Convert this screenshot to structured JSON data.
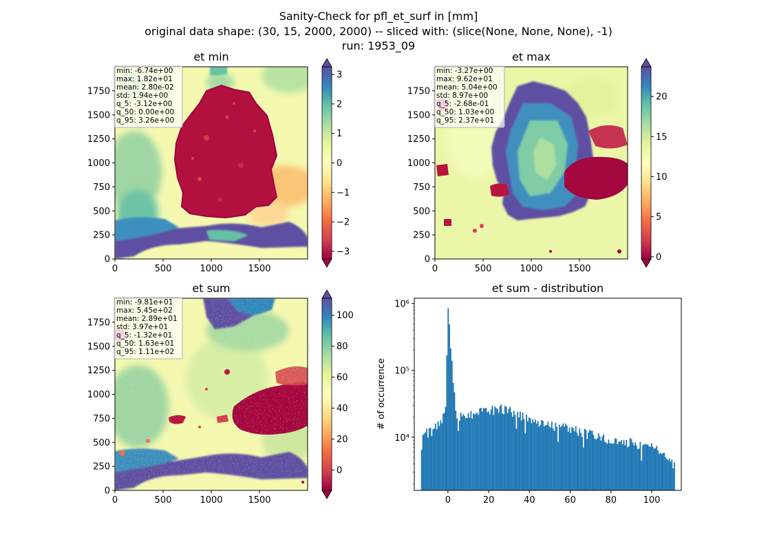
{
  "figure": {
    "title_lines": [
      "Sanity-Check for pfl_et_surf in [mm]",
      "original data shape: (30, 15, 2000, 2000) -- sliced with: (slice(None, None, None), -1)",
      "run: 1953_09"
    ]
  },
  "colors": {
    "colormap": [
      "#9e0142",
      "#d53e4f",
      "#f46d43",
      "#fdae61",
      "#fee08b",
      "#ffffbf",
      "#e6f598",
      "#abdda4",
      "#66c2a5",
      "#3288bd",
      "#5e4fa2"
    ],
    "hist_bar": "#1f77b4"
  },
  "chart_data": [
    {
      "type": "heatmap",
      "title": "et min",
      "x_ticks": [
        "0",
        "500",
        "1000",
        "1500"
      ],
      "y_ticks": [
        "0",
        "250",
        "500",
        "750",
        "1000",
        "1250",
        "1500",
        "1750"
      ],
      "xlim": [
        0,
        2000
      ],
      "ylim": [
        0,
        2000
      ],
      "colorbar": {
        "min": -3.26,
        "max": 3.26,
        "ticks": [
          "−3",
          "−2",
          "−1",
          "0",
          "1",
          "2",
          "3"
        ],
        "tick_values": [
          -3,
          -2,
          -1,
          0,
          1,
          2,
          3
        ],
        "extend": "both"
      },
      "stats": [
        "min: -6.74e+00",
        "max: 1.82e+01",
        "mean: 2.80e-02",
        "std: 1.94e+00",
        "q_5: -3.12e+00",
        "q_50: 0.00e+00",
        "q_95: 3.26e+00"
      ]
    },
    {
      "type": "heatmap",
      "title": "et max",
      "x_ticks": [
        "0",
        "500",
        "1000",
        "1500"
      ],
      "y_ticks": [
        "0",
        "250",
        "500",
        "750",
        "1000",
        "1250",
        "1500",
        "1750"
      ],
      "xlim": [
        0,
        2000
      ],
      "ylim": [
        0,
        2000
      ],
      "colorbar": {
        "min": -0.27,
        "max": 23.7,
        "ticks": [
          "0",
          "5",
          "10",
          "15",
          "20"
        ],
        "tick_values": [
          0,
          5,
          10,
          15,
          20
        ],
        "extend": "both"
      },
      "stats": [
        "min: -3.27e+00",
        "max: 9.62e+01",
        "mean: 5.04e+00",
        "std: 8.97e+00",
        "q_5: -2.68e-01",
        "q_50: 1.03e+00",
        "q_95: 2.37e+01"
      ]
    },
    {
      "type": "heatmap",
      "title": "et sum",
      "x_ticks": [
        "0",
        "500",
        "1000",
        "1500"
      ],
      "y_ticks": [
        "0",
        "250",
        "500",
        "750",
        "1000",
        "1250",
        "1500",
        "1750"
      ],
      "xlim": [
        0,
        2000
      ],
      "ylim": [
        0,
        2000
      ],
      "colorbar": {
        "min": -13.2,
        "max": 111,
        "ticks": [
          "0",
          "20",
          "40",
          "60",
          "80",
          "100"
        ],
        "tick_values": [
          0,
          20,
          40,
          60,
          80,
          100
        ],
        "extend": "both"
      },
      "stats": [
        "min: -9.81e+01",
        "max: 5.45e+02",
        "mean: 2.89e+01",
        "std: 3.97e+01",
        "q_5: -1.32e+01",
        "q_50: 1.63e+01",
        "q_95: 1.11e+02"
      ]
    },
    {
      "type": "bar",
      "title": "et sum - distribution",
      "ylabel": "# of occurrence",
      "yscale": "log",
      "ylim": [
        1600,
        1200000
      ],
      "xlim": [
        -16.5,
        114.5
      ],
      "x_ticks": [
        "0",
        "20",
        "40",
        "60",
        "80",
        "100"
      ],
      "x_tick_values": [
        0,
        20,
        40,
        60,
        80,
        100
      ],
      "y_ticks": [
        "10⁴",
        "10⁵",
        "10⁶"
      ],
      "y_tick_values": [
        10000,
        100000,
        1000000
      ],
      "bin_start": -13.2,
      "bin_width": 0.62,
      "x": [
        -12,
        -8,
        -4,
        -1,
        0,
        4,
        8,
        12,
        16,
        20,
        24,
        28,
        32,
        36,
        40,
        44,
        48,
        52,
        56,
        60,
        64,
        68,
        72,
        76,
        80,
        84,
        88,
        92,
        96,
        100,
        104,
        108,
        110
      ],
      "values": [
        11000,
        12500,
        17000,
        25000,
        850000,
        21000,
        22000,
        22000,
        24000,
        25000,
        27000,
        26000,
        24000,
        21000,
        18000,
        17500,
        16500,
        15000,
        14000,
        13500,
        12500,
        11500,
        10500,
        10000,
        9500,
        9000,
        8500,
        8000,
        7500,
        7000,
        6000,
        5000,
        4000
      ]
    }
  ]
}
